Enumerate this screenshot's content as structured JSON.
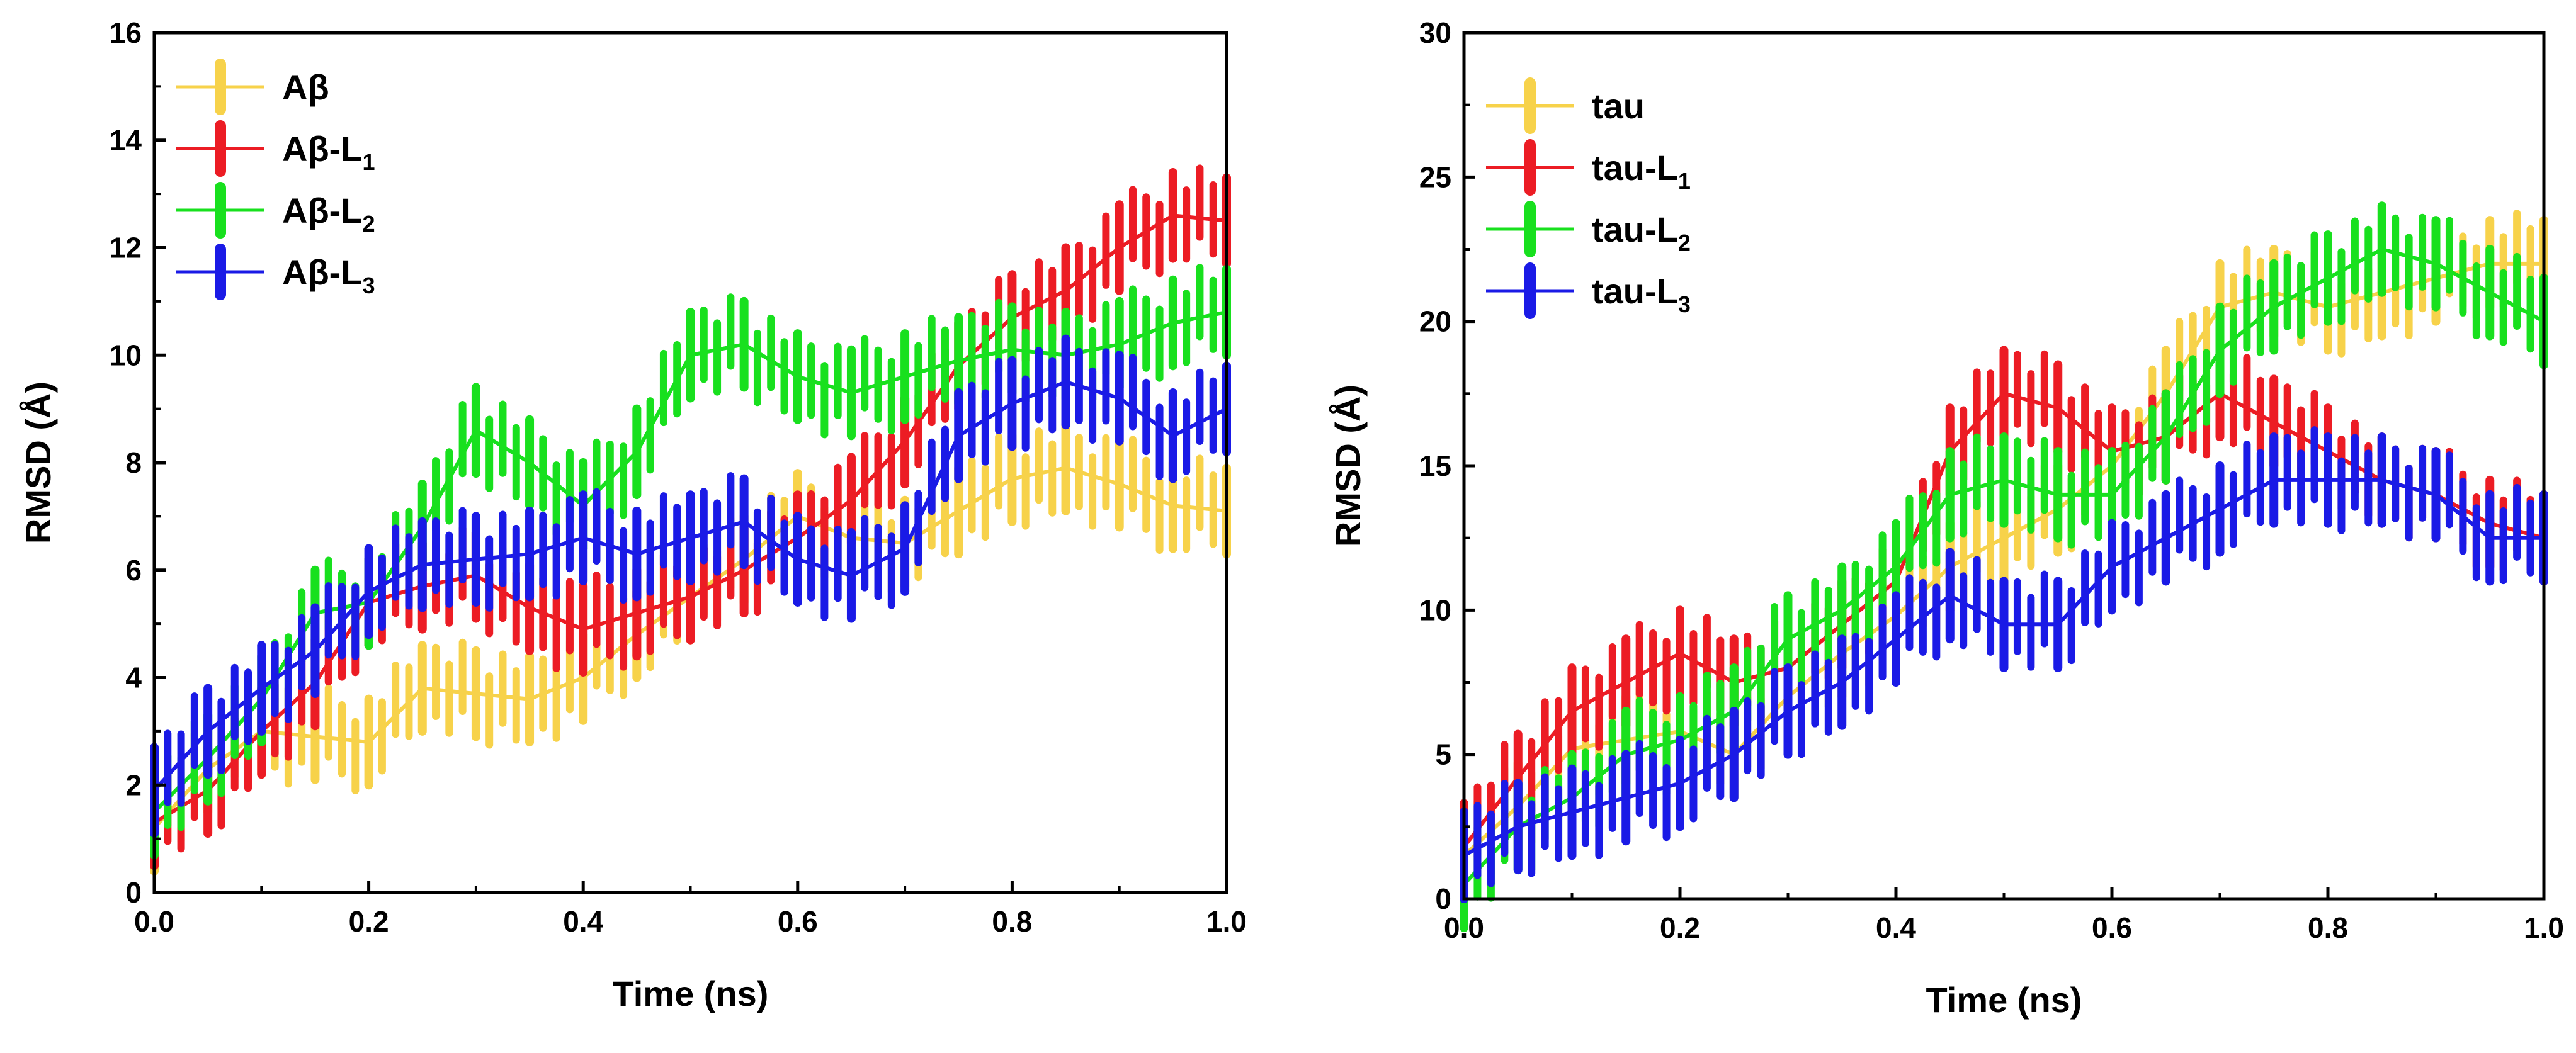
{
  "colors": {
    "yellow": "#f7d24a",
    "red": "#ec1c24",
    "green": "#18e01e",
    "blue": "#1a1ae6",
    "axis": "#000000"
  },
  "chart_data": [
    {
      "type": "line",
      "title": "",
      "xlabel": "Time (ns)",
      "ylabel": "RMSD (Å)",
      "xlim": [
        0,
        1.0
      ],
      "ylim": [
        0,
        16
      ],
      "xticks": [
        "0.0",
        "0.2",
        "0.4",
        "0.6",
        "0.8",
        "1.0"
      ],
      "yticks": [
        "0",
        "2",
        "4",
        "6",
        "8",
        "10",
        "12",
        "14",
        "16"
      ],
      "legend_position": "top-left",
      "x": [
        0.0,
        0.05,
        0.1,
        0.15,
        0.2,
        0.25,
        0.3,
        0.35,
        0.4,
        0.45,
        0.5,
        0.55,
        0.6,
        0.65,
        0.7,
        0.75,
        0.8,
        0.85,
        0.9,
        0.95,
        1.0
      ],
      "series": [
        {
          "name": "Aβ",
          "label_main": "Aβ",
          "label_sub": "",
          "color": "yellow",
          "spread": 0.8,
          "values": [
            1.2,
            2.3,
            3.0,
            2.9,
            2.8,
            3.8,
            3.7,
            3.6,
            4.0,
            4.8,
            5.5,
            6.2,
            7.0,
            6.6,
            6.5,
            7.1,
            7.7,
            7.9,
            7.6,
            7.2,
            7.1
          ]
        },
        {
          "name": "Aβ-L1",
          "label_main": "Aβ-L",
          "label_sub": "1",
          "color": "red",
          "spread": 0.8,
          "values": [
            1.3,
            1.9,
            3.0,
            3.9,
            5.4,
            5.7,
            5.9,
            5.3,
            4.9,
            5.2,
            5.5,
            6.0,
            6.6,
            7.3,
            8.4,
            9.8,
            10.7,
            11.2,
            12.0,
            12.6,
            12.5
          ]
        },
        {
          "name": "Aβ-L2",
          "label_main": "Aβ-L",
          "label_sub": "2",
          "color": "green",
          "spread": 0.8,
          "values": [
            1.5,
            2.5,
            3.6,
            5.2,
            5.4,
            6.8,
            8.6,
            8.0,
            7.2,
            8.2,
            10.0,
            10.2,
            9.6,
            9.3,
            9.6,
            9.9,
            10.1,
            10.0,
            10.2,
            10.6,
            10.8
          ]
        },
        {
          "name": "Aβ-L3",
          "label_main": "Aβ-L",
          "label_sub": "3",
          "color": "blue",
          "spread": 0.8,
          "values": [
            1.9,
            3.0,
            3.8,
            4.5,
            5.6,
            6.1,
            6.2,
            6.3,
            6.6,
            6.3,
            6.6,
            6.9,
            6.2,
            5.9,
            6.4,
            8.5,
            9.1,
            9.5,
            9.2,
            8.5,
            9.0
          ]
        }
      ]
    },
    {
      "type": "line",
      "title": "",
      "xlabel": "Time (ns)",
      "ylabel": "RMSD (Å)",
      "xlim": [
        0,
        1.0
      ],
      "ylim": [
        0,
        30
      ],
      "xticks": [
        "0.0",
        "0.2",
        "0.4",
        "0.6",
        "0.8",
        "1.0"
      ],
      "yticks": [
        "0",
        "5",
        "10",
        "15",
        "20",
        "25",
        "30"
      ],
      "legend_position": "top-left",
      "x": [
        0.0,
        0.05,
        0.1,
        0.15,
        0.2,
        0.25,
        0.3,
        0.35,
        0.4,
        0.45,
        0.5,
        0.55,
        0.6,
        0.65,
        0.7,
        0.75,
        0.8,
        0.85,
        0.9,
        0.95,
        1.0
      ],
      "series": [
        {
          "name": "tau",
          "label_main": "tau",
          "label_sub": "",
          "color": "yellow",
          "spread": 1.5,
          "values": [
            1.5,
            3.2,
            5.2,
            5.5,
            5.8,
            5.0,
            7.0,
            8.5,
            9.8,
            11.5,
            12.5,
            13.5,
            15.0,
            17.5,
            20.5,
            21.0,
            20.5,
            21.0,
            21.5,
            22.0,
            22.0
          ]
        },
        {
          "name": "tau-L1",
          "label_main": "tau-L",
          "label_sub": "1",
          "color": "red",
          "spread": 1.5,
          "values": [
            1.8,
            4.2,
            6.5,
            7.5,
            8.5,
            7.5,
            8.0,
            9.5,
            11.0,
            15.5,
            17.5,
            17.0,
            15.5,
            16.0,
            17.5,
            16.5,
            15.5,
            14.5,
            14.0,
            13.0,
            12.5
          ]
        },
        {
          "name": "tau-L2",
          "label_main": "tau-L",
          "label_sub": "2",
          "color": "green",
          "spread": 1.5,
          "values": [
            0.5,
            2.5,
            3.5,
            5.0,
            5.5,
            6.5,
            9.0,
            10.0,
            11.5,
            14.0,
            14.5,
            14.0,
            14.0,
            16.0,
            19.0,
            20.5,
            21.5,
            22.5,
            22.0,
            21.0,
            20.0
          ]
        },
        {
          "name": "tau-L3",
          "label_main": "tau-L",
          "label_sub": "3",
          "color": "blue",
          "spread": 1.5,
          "values": [
            1.5,
            2.5,
            3.0,
            3.5,
            4.0,
            5.0,
            6.5,
            7.5,
            9.0,
            10.5,
            9.5,
            9.5,
            11.5,
            12.5,
            13.5,
            14.5,
            14.5,
            14.5,
            14.0,
            12.5,
            12.5
          ]
        }
      ]
    }
  ]
}
